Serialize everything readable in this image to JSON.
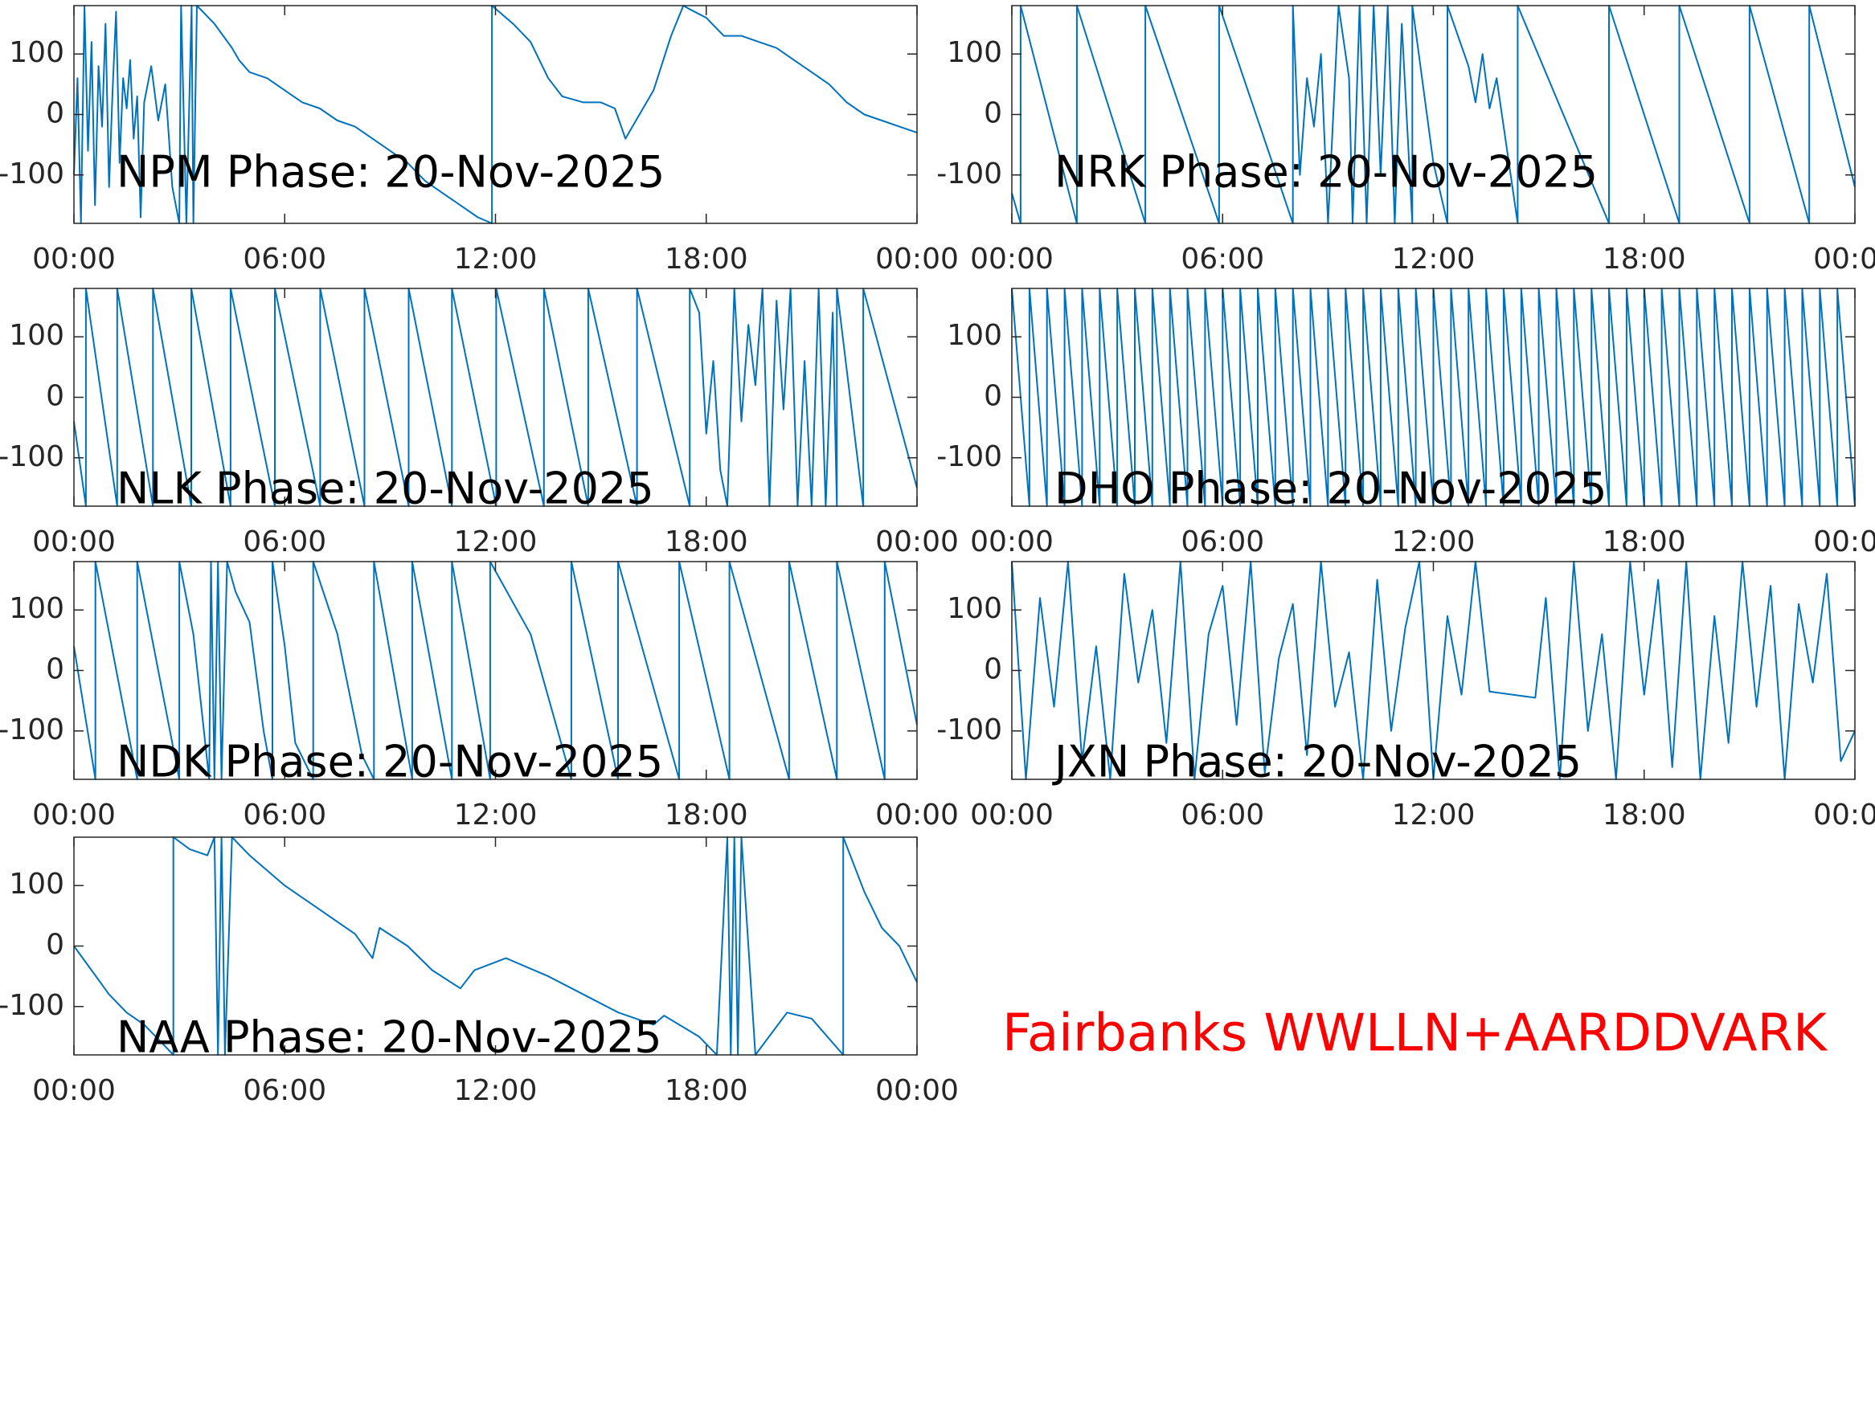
{
  "chart_data": [
    {
      "type": "line",
      "title": "NPM Phase: 20-Nov-2025",
      "color": "#0072bd",
      "xlim": [
        0,
        24
      ],
      "ylim": [
        -180,
        180
      ],
      "yticks": [
        -100,
        0,
        100
      ],
      "xticks": [
        {
          "value": 0,
          "label": "00:00"
        },
        {
          "value": 6,
          "label": "06:00"
        },
        {
          "value": 12,
          "label": "12:00"
        },
        {
          "value": 18,
          "label": "18:00"
        },
        {
          "value": 24,
          "label": "00:00"
        }
      ],
      "x": [
        0,
        0.1,
        0.2,
        0.3,
        0.4,
        0.5,
        0.6,
        0.7,
        0.8,
        0.9,
        1.0,
        1.1,
        1.2,
        1.3,
        1.4,
        1.5,
        1.6,
        1.7,
        1.8,
        1.9,
        2.0,
        2.2,
        2.4,
        2.6,
        2.8,
        3.0,
        3.05,
        3.2,
        3.35,
        3.4,
        3.5,
        4.0,
        4.5,
        4.7,
        5.0,
        5.5,
        6.0,
        6.5,
        7.0,
        7.5,
        8.0,
        8.5,
        9.0,
        9.5,
        10.0,
        10.5,
        11.0,
        11.5,
        11.9,
        11.9,
        12.5,
        13.0,
        13.5,
        13.9,
        14.5,
        15.0,
        15.4,
        15.7,
        16.0,
        16.5,
        17.0,
        17.35,
        17.5,
        18.0,
        18.5,
        19.0,
        19.5,
        20.0,
        20.5,
        21.0,
        21.5,
        22.0,
        22.5,
        23.0,
        23.5,
        24
      ],
      "values": [
        -100,
        60,
        -180,
        180,
        -60,
        120,
        -150,
        80,
        -20,
        150,
        -120,
        40,
        170,
        -80,
        60,
        10,
        90,
        -40,
        30,
        -170,
        20,
        80,
        -10,
        50,
        -120,
        -180,
        180,
        -180,
        180,
        -180,
        180,
        150,
        110,
        90,
        70,
        60,
        40,
        20,
        10,
        -10,
        -20,
        -40,
        -60,
        -80,
        -110,
        -130,
        -150,
        -170,
        -180,
        180,
        150,
        120,
        60,
        30,
        20,
        20,
        10,
        -40,
        -10,
        40,
        130,
        180,
        175,
        160,
        130,
        130,
        120,
        110,
        90,
        70,
        50,
        20,
        0,
        -10,
        -20,
        -30
      ]
    },
    {
      "type": "line",
      "title": "NRK Phase: 20-Nov-2025",
      "color": "#0072bd",
      "xlim": [
        0,
        24
      ],
      "ylim": [
        -180,
        180
      ],
      "yticks": [
        -100,
        0,
        100
      ],
      "xticks": [
        {
          "value": 0,
          "label": "00:00"
        },
        {
          "value": 6,
          "label": "06:00"
        },
        {
          "value": 12,
          "label": "12:00"
        },
        {
          "value": 18,
          "label": "18:00"
        },
        {
          "value": 24,
          "label": "00:00"
        }
      ],
      "x": [
        0,
        0.25,
        0.25,
        1.85,
        1.85,
        3.8,
        3.8,
        5.9,
        5.9,
        8.0,
        8.0,
        8.2,
        8.4,
        8.6,
        8.8,
        9.0,
        9.3,
        9.6,
        9.7,
        9.9,
        10.1,
        10.3,
        10.5,
        10.7,
        10.9,
        11.1,
        11.4,
        11.4,
        12.0,
        12.4,
        12.4,
        13.0,
        13.2,
        13.4,
        13.6,
        13.8,
        14.4,
        14.4,
        17.0,
        17.0,
        19.0,
        19.0,
        21.0,
        21.0,
        22.7,
        22.7,
        24
      ],
      "values": [
        -130,
        -180,
        180,
        -180,
        180,
        -180,
        180,
        -180,
        180,
        -180,
        180,
        -100,
        60,
        -20,
        100,
        -180,
        180,
        60,
        -180,
        180,
        -180,
        180,
        -100,
        180,
        -180,
        150,
        -180,
        180,
        -80,
        -180,
        180,
        80,
        20,
        100,
        10,
        60,
        -180,
        180,
        -180,
        180,
        -180,
        180,
        -180,
        180,
        -180,
        180,
        -120
      ]
    },
    {
      "type": "line",
      "title": "NLK Phase: 20-Nov-2025",
      "color": "#0072bd",
      "xlim": [
        0,
        24
      ],
      "ylim": [
        -180,
        180
      ],
      "yticks": [
        -100,
        0,
        100
      ],
      "xticks": [
        {
          "value": 0,
          "label": "00:00"
        },
        {
          "value": 6,
          "label": "06:00"
        },
        {
          "value": 12,
          "label": "12:00"
        },
        {
          "value": 18,
          "label": "18:00"
        },
        {
          "value": 24,
          "label": "00:00"
        }
      ],
      "x": [
        0,
        0.34,
        0.34,
        1.23,
        1.23,
        2.25,
        2.25,
        3.34,
        3.34,
        4.46,
        4.46,
        5.72,
        5.72,
        7.01,
        7.01,
        8.27,
        8.27,
        9.53,
        9.53,
        10.76,
        10.76,
        12.02,
        12.02,
        13.38,
        13.38,
        14.64,
        14.64,
        16.03,
        16.03,
        17.53,
        17.53,
        17.8,
        18.0,
        18.2,
        18.4,
        18.6,
        18.8,
        19.0,
        19.2,
        19.4,
        19.6,
        19.8,
        20.0,
        20.2,
        20.4,
        20.6,
        20.8,
        21.0,
        21.2,
        21.4,
        21.6,
        21.72,
        21.72,
        22.47,
        22.47,
        24
      ],
      "values": [
        -40,
        -180,
        180,
        -180,
        180,
        -180,
        180,
        -180,
        180,
        -180,
        180,
        -180,
        180,
        -180,
        180,
        -180,
        180,
        -180,
        180,
        -180,
        180,
        -180,
        180,
        -180,
        180,
        -180,
        180,
        -180,
        180,
        -180,
        180,
        140,
        -60,
        60,
        -120,
        -180,
        180,
        -40,
        120,
        20,
        180,
        -180,
        160,
        -20,
        180,
        -180,
        60,
        -180,
        180,
        -180,
        140,
        -180,
        180,
        -180,
        180,
        -150
      ]
    },
    {
      "type": "line",
      "title": "DHO Phase: 20-Nov-2025",
      "color": "#0072bd",
      "xlim": [
        0,
        24
      ],
      "ylim": [
        -180,
        180
      ],
      "yticks": [
        -100,
        0,
        100
      ],
      "xticks": [
        {
          "value": 0,
          "label": "00:00"
        },
        {
          "value": 6,
          "label": "06:00"
        },
        {
          "value": 12,
          "label": "12:00"
        },
        {
          "value": 18,
          "label": "18:00"
        },
        {
          "value": 24,
          "label": "00:00"
        }
      ],
      "x": [
        0,
        0.5,
        0.5,
        1,
        1,
        1.5,
        1.5,
        2,
        2,
        2.5,
        2.5,
        3,
        3,
        3.5,
        3.5,
        4,
        4,
        4.5,
        4.5,
        5,
        5,
        5.5,
        5.5,
        6,
        6,
        6.5,
        6.5,
        7,
        7,
        7.5,
        7.5,
        8,
        8,
        8.5,
        8.5,
        9,
        9,
        9.5,
        9.5,
        10,
        10,
        10.5,
        10.5,
        11,
        11,
        11.5,
        11.5,
        12,
        12,
        12.5,
        12.5,
        13,
        13,
        13.5,
        13.5,
        14,
        14,
        14.5,
        14.5,
        15,
        15,
        15.5,
        15.5,
        16,
        16,
        16.5,
        16.5,
        17,
        17,
        17.5,
        17.5,
        18,
        18,
        18.5,
        18.5,
        19,
        19,
        19.5,
        19.5,
        20,
        20,
        20.5,
        20.5,
        21,
        21,
        21.5,
        21.5,
        22,
        22,
        22.5,
        22.5,
        23,
        23,
        23.5,
        23.5,
        24
      ],
      "values": [
        180,
        -180,
        180,
        -180,
        180,
        -180,
        180,
        -180,
        180,
        -180,
        180,
        -180,
        180,
        -180,
        180,
        -180,
        180,
        -180,
        180,
        -180,
        180,
        -180,
        180,
        -180,
        180,
        -180,
        180,
        -180,
        180,
        -180,
        180,
        -180,
        180,
        -180,
        180,
        -180,
        180,
        -180,
        180,
        -180,
        180,
        -180,
        180,
        -180,
        180,
        -180,
        180,
        -180,
        180,
        -180,
        180,
        -180,
        180,
        -180,
        180,
        -180,
        180,
        -180,
        180,
        -180,
        180,
        -180,
        180,
        -180,
        180,
        -180,
        180,
        -180,
        180,
        -180,
        180,
        -180,
        180,
        -180,
        180,
        -180,
        180,
        -180,
        180,
        -180,
        180,
        -180,
        180,
        -180,
        180,
        -180,
        180,
        -180,
        180,
        -180,
        180,
        -180,
        180,
        -180,
        180,
        -180
      ]
    },
    {
      "type": "line",
      "title": "NDK Phase: 20-Nov-2025",
      "color": "#0072bd",
      "xlim": [
        0,
        24
      ],
      "ylim": [
        -180,
        180
      ],
      "yticks": [
        -100,
        0,
        100
      ],
      "xticks": [
        {
          "value": 0,
          "label": "00:00"
        },
        {
          "value": 6,
          "label": "06:00"
        },
        {
          "value": 12,
          "label": "12:00"
        },
        {
          "value": 18,
          "label": "18:00"
        },
        {
          "value": 24,
          "label": "00:00"
        }
      ],
      "x": [
        0,
        0.61,
        0.61,
        1.8,
        1.8,
        3.0,
        3.0,
        3.4,
        3.85,
        3.9,
        4.0,
        4.1,
        4.2,
        4.36,
        4.6,
        5.0,
        5.4,
        5.65,
        5.65,
        6.0,
        6.3,
        6.81,
        6.81,
        7.5,
        8.2,
        8.54,
        8.54,
        9.63,
        9.63,
        10.76,
        10.76,
        11.85,
        11.85,
        13.0,
        14.16,
        14.16,
        15.49,
        15.49,
        17.23,
        17.23,
        18.66,
        18.66,
        20.36,
        20.36,
        21.72,
        21.72,
        23.08,
        23.08,
        24
      ],
      "values": [
        40,
        -180,
        180,
        -180,
        180,
        -180,
        180,
        60,
        -180,
        180,
        -180,
        180,
        -180,
        180,
        130,
        80,
        -100,
        -180,
        180,
        40,
        -120,
        -180,
        180,
        60,
        -140,
        -180,
        180,
        -180,
        180,
        -180,
        180,
        -180,
        180,
        60,
        -180,
        180,
        -180,
        180,
        -180,
        180,
        -180,
        180,
        -180,
        180,
        -180,
        180,
        -180,
        180,
        -90
      ]
    },
    {
      "type": "line",
      "title": "JXN Phase: 20-Nov-2025",
      "color": "#0072bd",
      "xlim": [
        0,
        24
      ],
      "ylim": [
        -180,
        180
      ],
      "yticks": [
        -100,
        0,
        100
      ],
      "xticks": [
        {
          "value": 0,
          "label": "00:00"
        },
        {
          "value": 6,
          "label": "06:00"
        },
        {
          "value": 12,
          "label": "12:00"
        },
        {
          "value": 18,
          "label": "18:00"
        },
        {
          "value": 24,
          "label": "00:00"
        }
      ],
      "x": [
        0,
        0.4,
        0.8,
        1.2,
        1.6,
        2.0,
        2.4,
        2.8,
        3.2,
        3.6,
        4.0,
        4.4,
        4.8,
        5.2,
        5.6,
        6.0,
        6.4,
        6.8,
        7.2,
        7.6,
        8.0,
        8.4,
        8.8,
        9.2,
        9.6,
        10.0,
        10.4,
        10.8,
        11.2,
        11.6,
        12.0,
        12.4,
        12.8,
        13.2,
        13.6,
        14.0,
        14.5,
        14.9,
        15.2,
        15.6,
        16.0,
        16.4,
        16.8,
        17.2,
        17.6,
        18.0,
        18.4,
        18.8,
        19.2,
        19.6,
        20.0,
        20.4,
        20.8,
        21.2,
        21.6,
        22.0,
        22.4,
        22.8,
        23.2,
        23.6,
        24.0
      ],
      "values": [
        180,
        -180,
        120,
        -60,
        180,
        -150,
        40,
        -180,
        160,
        -20,
        100,
        -120,
        180,
        -180,
        60,
        140,
        -90,
        180,
        -170,
        20,
        110,
        -140,
        180,
        -60,
        30,
        -180,
        150,
        -100,
        70,
        180,
        -180,
        90,
        -40,
        180,
        -35,
        -38,
        -42,
        -45,
        120,
        -180,
        180,
        -100,
        60,
        -180,
        180,
        -40,
        150,
        -160,
        180,
        -180,
        90,
        -120,
        180,
        -60,
        140,
        -180,
        110,
        -20,
        160,
        -150,
        -100
      ]
    },
    {
      "type": "line",
      "title": "NAA Phase: 20-Nov-2025",
      "color": "#0072bd",
      "xlim": [
        0,
        24
      ],
      "ylim": [
        -180,
        180
      ],
      "yticks": [
        -100,
        0,
        100
      ],
      "xticks": [
        {
          "value": 0,
          "label": "00:00"
        },
        {
          "value": 6,
          "label": "06:00"
        },
        {
          "value": 12,
          "label": "12:00"
        },
        {
          "value": 18,
          "label": "18:00"
        },
        {
          "value": 24,
          "label": "00:00"
        }
      ],
      "x": [
        0,
        0.5,
        1.0,
        1.5,
        2.0,
        2.5,
        2.83,
        2.83,
        3.3,
        3.8,
        4.0,
        4.1,
        4.2,
        4.3,
        4.5,
        5.0,
        6.0,
        7.0,
        8.0,
        8.5,
        8.7,
        9.5,
        10.2,
        11.0,
        11.4,
        12.3,
        13.5,
        14.5,
        15.5,
        16.5,
        16.8,
        17.8,
        18.3,
        18.6,
        18.7,
        18.8,
        18.9,
        19.0,
        19.4,
        20.3,
        21.0,
        21.9,
        21.9,
        22.5,
        23.0,
        23.5,
        24
      ],
      "values": [
        0,
        -40,
        -80,
        -110,
        -130,
        -160,
        -180,
        180,
        160,
        150,
        180,
        -180,
        180,
        -180,
        180,
        150,
        100,
        60,
        20,
        -20,
        30,
        0,
        -40,
        -70,
        -40,
        -20,
        -50,
        -80,
        -110,
        -130,
        -115,
        -150,
        -180,
        180,
        -180,
        180,
        -180,
        180,
        -180,
        -110,
        -120,
        -180,
        180,
        90,
        30,
        0,
        -60
      ]
    }
  ],
  "caption": "Fairbanks WWLLN+AARDDVARK"
}
